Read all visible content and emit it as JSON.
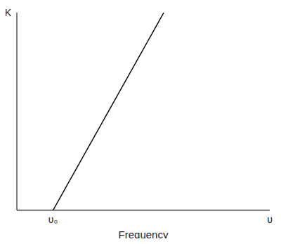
{
  "chart_data": {
    "type": "line",
    "x_label": "Frequency",
    "x": [
      1.43,
      5.81
    ],
    "values": [
      0,
      10
    ],
    "color": "#000000",
    "xlim": [
      0,
      10
    ],
    "ylim": [
      0,
      10
    ],
    "xticks": [
      {
        "value": 1.43,
        "label": "υ₀"
      },
      {
        "value": 10,
        "label": "υ"
      }
    ],
    "yticks": [
      {
        "value": 10,
        "label": "K"
      }
    ],
    "grid": false,
    "tick_labels": true
  }
}
